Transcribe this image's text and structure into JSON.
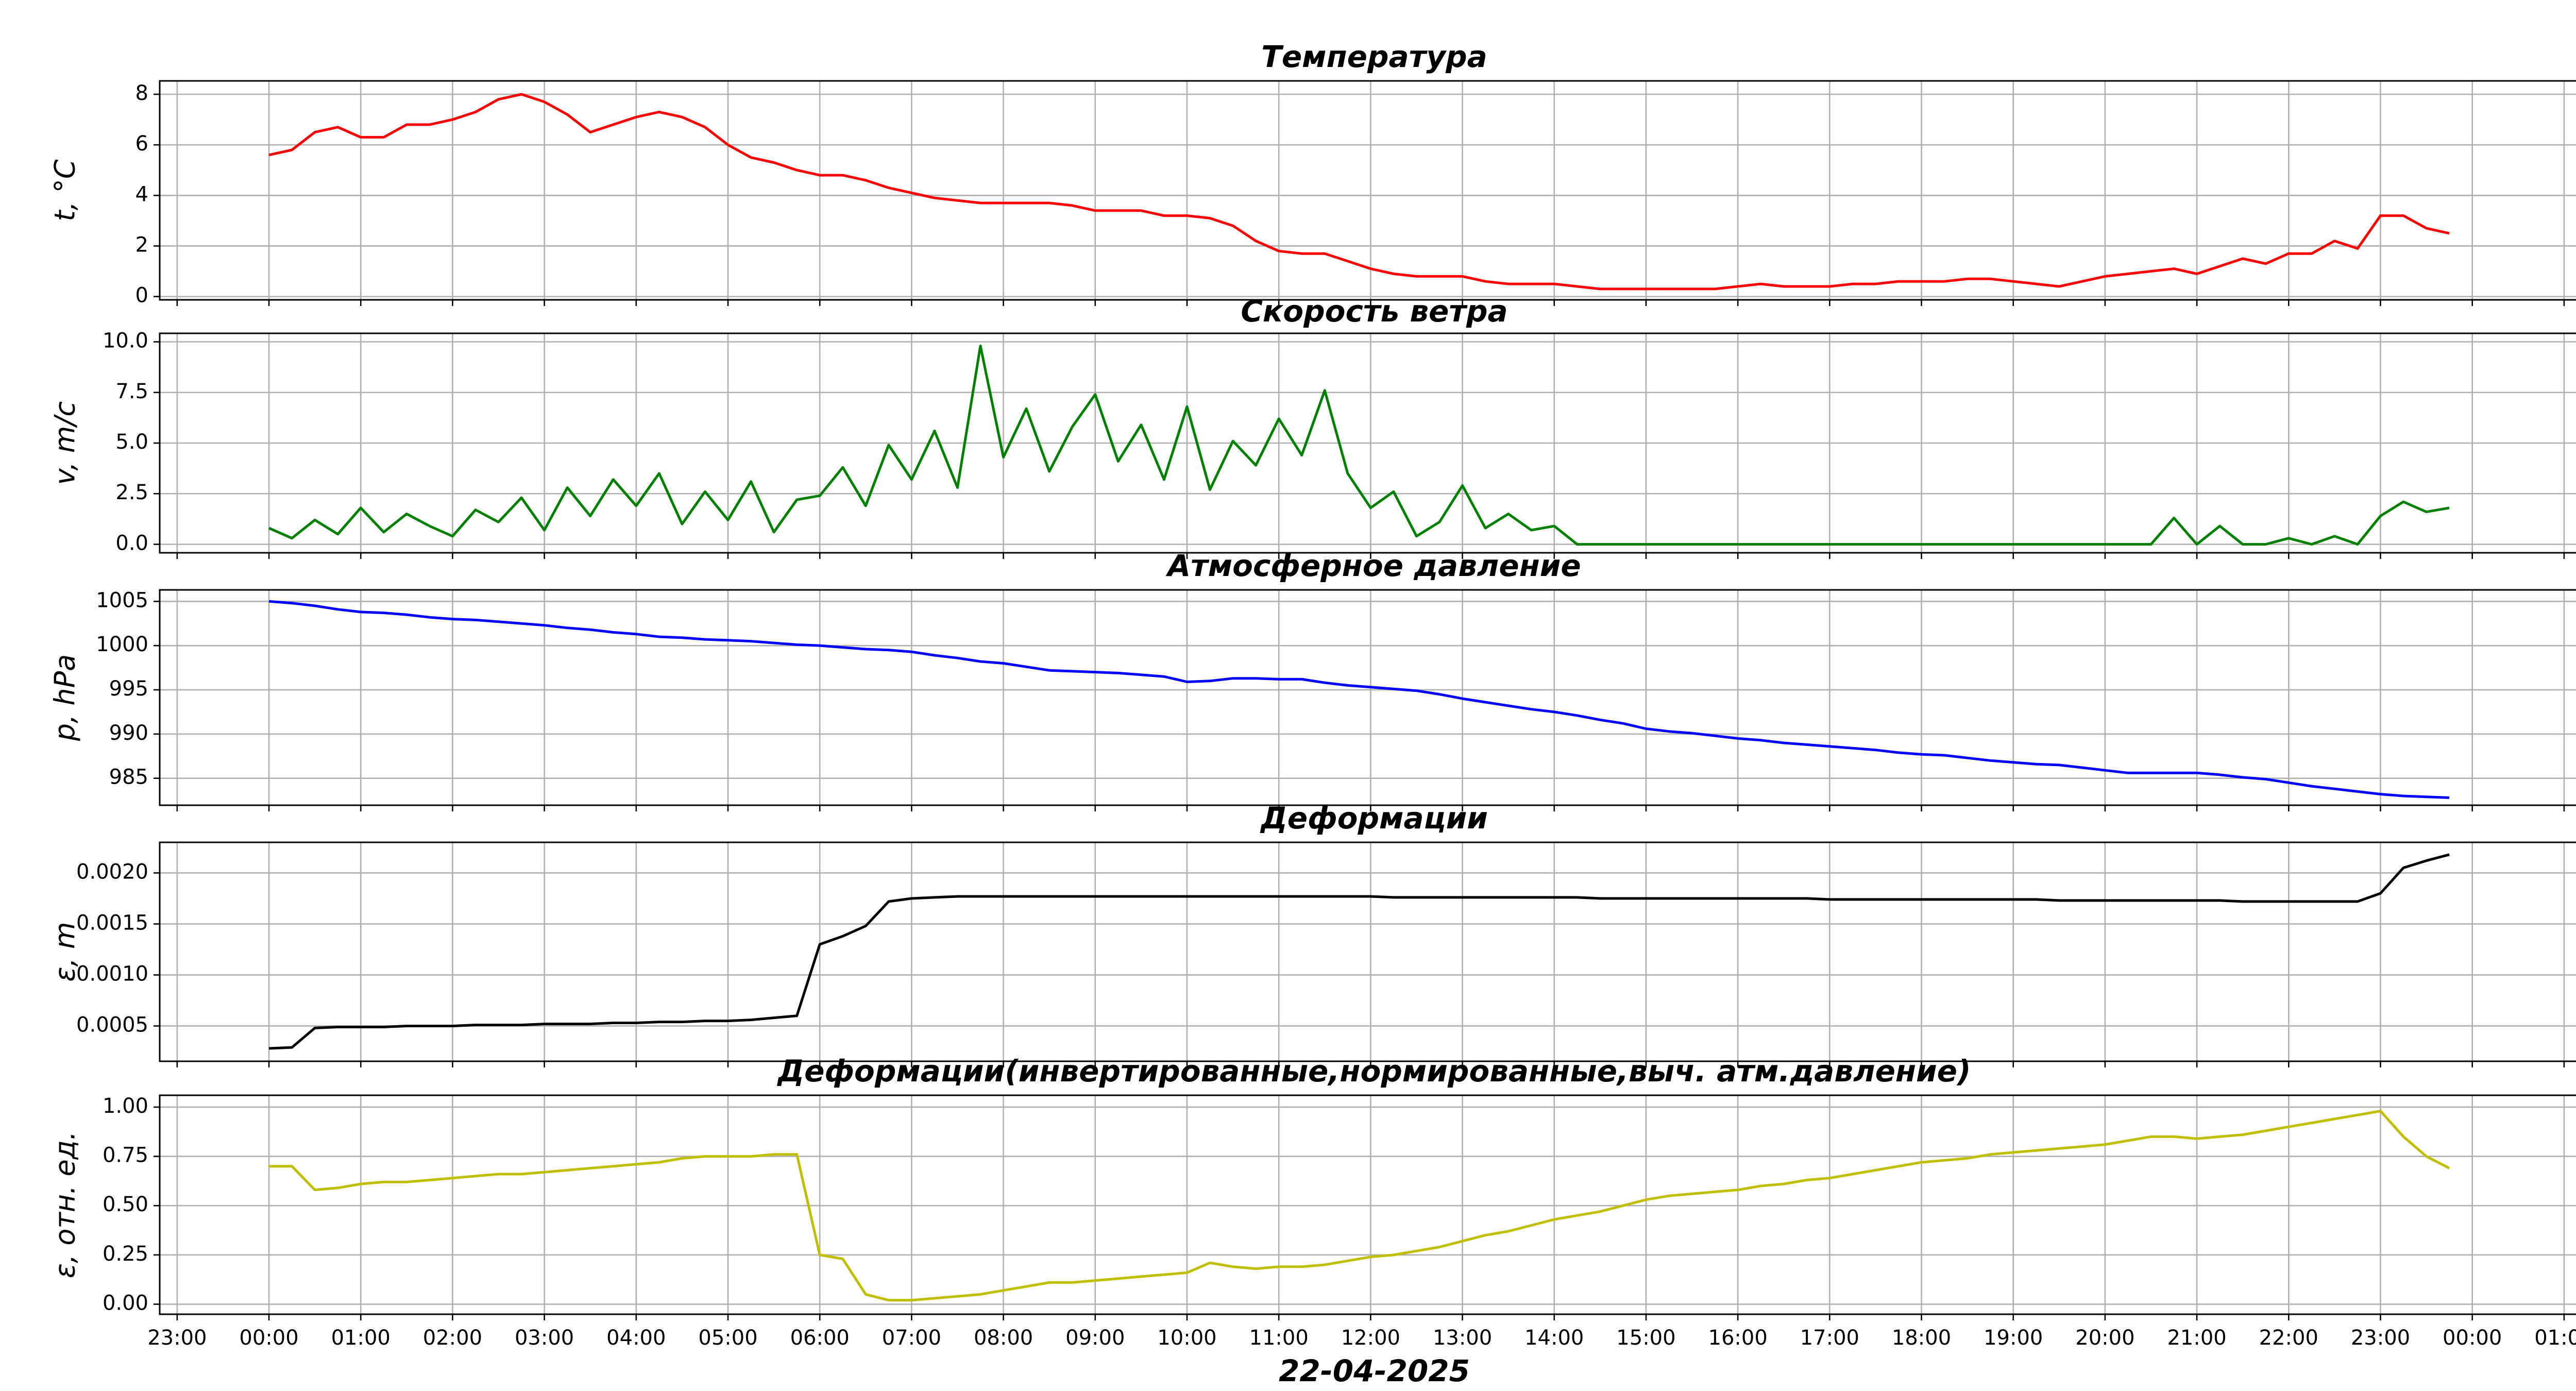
{
  "chart_data": [
    {
      "type": "line",
      "title": "Температура",
      "ylabel": "t, °C",
      "color": "#ff0000",
      "grid": true,
      "x": [
        0,
        0.25,
        0.5,
        0.75,
        1,
        1.25,
        1.5,
        1.75,
        2,
        2.25,
        2.5,
        2.75,
        3,
        3.25,
        3.5,
        3.75,
        4,
        4.25,
        4.5,
        4.75,
        5,
        5.25,
        5.5,
        5.75,
        6,
        6.25,
        6.5,
        6.75,
        7,
        7.25,
        7.5,
        7.75,
        8,
        8.25,
        8.5,
        8.75,
        9,
        9.25,
        9.5,
        9.75,
        10,
        10.25,
        10.5,
        10.75,
        11,
        11.25,
        11.5,
        11.75,
        12,
        12.25,
        12.5,
        12.75,
        13,
        13.25,
        13.5,
        13.75,
        14,
        14.25,
        14.5,
        14.75,
        15,
        15.25,
        15.5,
        15.75,
        16,
        16.25,
        16.5,
        16.75,
        17,
        17.25,
        17.5,
        17.75,
        18,
        18.25,
        18.5,
        18.75,
        19,
        19.25,
        19.5,
        19.75,
        20,
        20.25,
        20.5,
        20.75,
        21,
        21.25,
        21.5,
        21.75,
        22,
        22.25,
        22.5,
        22.75,
        23,
        23.25,
        23.5,
        23.75
      ],
      "values": [
        5.6,
        5.8,
        6.5,
        6.7,
        6.3,
        6.3,
        6.8,
        6.8,
        7.0,
        7.3,
        7.8,
        8.0,
        7.7,
        7.2,
        6.5,
        6.8,
        7.1,
        7.3,
        7.1,
        6.7,
        6.0,
        5.5,
        5.3,
        5.0,
        4.8,
        4.8,
        4.6,
        4.3,
        4.1,
        3.9,
        3.8,
        3.7,
        3.7,
        3.7,
        3.7,
        3.6,
        3.4,
        3.4,
        3.4,
        3.2,
        3.2,
        3.1,
        2.8,
        2.2,
        1.8,
        1.7,
        1.7,
        1.4,
        1.1,
        0.9,
        0.8,
        0.8,
        0.8,
        0.6,
        0.5,
        0.5,
        0.5,
        0.4,
        0.3,
        0.3,
        0.3,
        0.3,
        0.3,
        0.3,
        0.4,
        0.5,
        0.4,
        0.4,
        0.4,
        0.5,
        0.5,
        0.6,
        0.6,
        0.6,
        0.7,
        0.7,
        0.6,
        0.5,
        0.4,
        0.6,
        0.8,
        0.9,
        1.0,
        1.1,
        0.9,
        1.2,
        1.5,
        1.3,
        1.7,
        1.7,
        2.2,
        1.9,
        3.2,
        3.2,
        2.7,
        2.5
      ],
      "xlim": [
        -1.19,
        25.27
      ],
      "xticks": [
        -1,
        0,
        1,
        2,
        3,
        4,
        5,
        6,
        7,
        8,
        9,
        10,
        11,
        12,
        13,
        14,
        15,
        16,
        17,
        18,
        19,
        20,
        21,
        22,
        23,
        24,
        25
      ],
      "ylim": [
        -0.13,
        8.53
      ],
      "yticks": [
        0,
        2,
        4,
        6,
        8
      ]
    },
    {
      "type": "line",
      "title": "Скорость ветра",
      "ylabel": "v, m/c",
      "color": "#008000",
      "grid": true,
      "x": [
        0,
        0.25,
        0.5,
        0.75,
        1,
        1.25,
        1.5,
        1.75,
        2,
        2.25,
        2.5,
        2.75,
        3,
        3.25,
        3.5,
        3.75,
        4,
        4.25,
        4.5,
        4.75,
        5,
        5.25,
        5.5,
        5.75,
        6,
        6.25,
        6.5,
        6.75,
        7,
        7.25,
        7.5,
        7.75,
        8,
        8.25,
        8.5,
        8.75,
        9,
        9.25,
        9.5,
        9.75,
        10,
        10.25,
        10.5,
        10.75,
        11,
        11.25,
        11.5,
        11.75,
        12,
        12.25,
        12.5,
        12.75,
        13,
        13.25,
        13.5,
        13.75,
        14,
        14.25,
        14.5,
        14.75,
        15,
        15.25,
        15.5,
        15.75,
        16,
        16.25,
        16.5,
        16.75,
        17,
        17.25,
        17.5,
        17.75,
        18,
        18.25,
        18.5,
        18.75,
        19,
        19.25,
        19.5,
        19.75,
        20,
        20.25,
        20.5,
        20.75,
        21,
        21.25,
        21.5,
        21.75,
        22,
        22.25,
        22.5,
        22.75,
        23,
        23.25,
        23.5,
        23.75
      ],
      "values": [
        0.8,
        0.3,
        1.2,
        0.5,
        1.8,
        0.6,
        1.5,
        0.9,
        0.4,
        1.7,
        1.1,
        2.3,
        0.7,
        2.8,
        1.4,
        3.2,
        1.9,
        3.5,
        1.0,
        2.6,
        1.2,
        3.1,
        0.6,
        2.2,
        2.4,
        3.8,
        1.9,
        4.9,
        3.2,
        5.6,
        2.8,
        9.8,
        4.3,
        6.7,
        3.6,
        5.8,
        7.4,
        4.1,
        5.9,
        3.2,
        6.8,
        2.7,
        5.1,
        3.9,
        6.2,
        4.4,
        7.6,
        3.5,
        1.8,
        2.6,
        0.4,
        1.1,
        2.9,
        0.8,
        1.5,
        0.7,
        0.9,
        0,
        0,
        0,
        0,
        0,
        0,
        0,
        0,
        0,
        0,
        0,
        0,
        0,
        0,
        0,
        0,
        0,
        0,
        0,
        0,
        0,
        0,
        0,
        0,
        0,
        0,
        1.3,
        0,
        0.9,
        0,
        0,
        0.3,
        0,
        0.4,
        0,
        1.4,
        2.1,
        1.6,
        1.8
      ],
      "xlim": [
        -1.19,
        25.27
      ],
      "xticks": [
        -1,
        0,
        1,
        2,
        3,
        4,
        5,
        6,
        7,
        8,
        9,
        10,
        11,
        12,
        13,
        14,
        15,
        16,
        17,
        18,
        19,
        20,
        21,
        22,
        23,
        24,
        25
      ],
      "ylim": [
        -0.42,
        10.42
      ],
      "yticks": [
        {
          "value": 0,
          "label": "0.0"
        },
        2.5,
        {
          "value": 5,
          "label": "5.0"
        },
        7.5,
        {
          "value": 10,
          "label": "10.0"
        }
      ]
    },
    {
      "type": "line",
      "title": "Атмосферное давление",
      "ylabel": "p, hPa",
      "color": "#0000ff",
      "grid": true,
      "x": [
        0,
        0.25,
        0.5,
        0.75,
        1,
        1.25,
        1.5,
        1.75,
        2,
        2.25,
        2.5,
        2.75,
        3,
        3.25,
        3.5,
        3.75,
        4,
        4.25,
        4.5,
        4.75,
        5,
        5.25,
        5.5,
        5.75,
        6,
        6.25,
        6.5,
        6.75,
        7,
        7.25,
        7.5,
        7.75,
        8,
        8.25,
        8.5,
        8.75,
        9,
        9.25,
        9.5,
        9.75,
        10,
        10.25,
        10.5,
        10.75,
        11,
        11.25,
        11.5,
        11.75,
        12,
        12.25,
        12.5,
        12.75,
        13,
        13.25,
        13.5,
        13.75,
        14,
        14.25,
        14.5,
        14.75,
        15,
        15.25,
        15.5,
        15.75,
        16,
        16.25,
        16.5,
        16.75,
        17,
        17.25,
        17.5,
        17.75,
        18,
        18.25,
        18.5,
        18.75,
        19,
        19.25,
        19.5,
        19.75,
        20,
        20.25,
        20.5,
        20.75,
        21,
        21.25,
        21.5,
        21.75,
        22,
        22.25,
        22.5,
        22.75,
        23,
        23.25,
        23.5,
        23.75
      ],
      "values": [
        1005.0,
        1004.8,
        1004.5,
        1004.1,
        1003.8,
        1003.7,
        1003.5,
        1003.2,
        1003.0,
        1002.9,
        1002.7,
        1002.5,
        1002.3,
        1002.0,
        1001.8,
        1001.5,
        1001.3,
        1001.0,
        1000.9,
        1000.7,
        1000.6,
        1000.5,
        1000.3,
        1000.1,
        1000.0,
        999.8,
        999.6,
        999.5,
        999.3,
        998.9,
        998.6,
        998.2,
        998.0,
        997.6,
        997.2,
        997.1,
        997.0,
        996.9,
        996.7,
        996.5,
        995.9,
        996.0,
        996.3,
        996.3,
        996.2,
        996.2,
        995.8,
        995.5,
        995.3,
        995.1,
        994.9,
        994.5,
        994.0,
        993.6,
        993.2,
        992.8,
        992.5,
        992.1,
        991.6,
        991.2,
        990.6,
        990.3,
        990.1,
        989.8,
        989.5,
        989.3,
        989.0,
        988.8,
        988.6,
        988.4,
        988.2,
        987.9,
        987.7,
        987.6,
        987.3,
        987.0,
        986.8,
        986.6,
        986.5,
        986.2,
        985.9,
        985.6,
        985.6,
        985.6,
        985.6,
        985.4,
        985.1,
        984.9,
        984.5,
        984.1,
        983.8,
        983.5,
        983.2,
        983.0,
        982.9,
        982.8
      ],
      "xlim": [
        -1.19,
        25.27
      ],
      "xticks": [
        -1,
        0,
        1,
        2,
        3,
        4,
        5,
        6,
        7,
        8,
        9,
        10,
        11,
        12,
        13,
        14,
        15,
        16,
        17,
        18,
        19,
        20,
        21,
        22,
        23,
        24,
        25
      ],
      "ylim": [
        981.95,
        1006.3
      ],
      "yticks": [
        985,
        990,
        995,
        1000,
        1005
      ]
    },
    {
      "type": "line",
      "title": "Деформации",
      "ylabel": "ε, m",
      "color": "#000000",
      "grid": true,
      "x": [
        0,
        0.25,
        0.5,
        0.75,
        1,
        1.25,
        1.5,
        1.75,
        2,
        2.25,
        2.5,
        2.75,
        3,
        3.25,
        3.5,
        3.75,
        4,
        4.25,
        4.5,
        4.75,
        5,
        5.25,
        5.5,
        5.75,
        6,
        6.25,
        6.5,
        6.75,
        7,
        7.25,
        7.5,
        7.75,
        8,
        8.25,
        8.5,
        8.75,
        9,
        9.25,
        9.5,
        9.75,
        10,
        10.25,
        10.5,
        10.75,
        11,
        11.25,
        11.5,
        11.75,
        12,
        12.25,
        12.5,
        12.75,
        13,
        13.25,
        13.5,
        13.75,
        14,
        14.25,
        14.5,
        14.75,
        15,
        15.25,
        15.5,
        15.75,
        16,
        16.25,
        16.5,
        16.75,
        17,
        17.25,
        17.5,
        17.75,
        18,
        18.25,
        18.5,
        18.75,
        19,
        19.25,
        19.5,
        19.75,
        20,
        20.25,
        20.5,
        20.75,
        21,
        21.25,
        21.5,
        21.75,
        22,
        22.25,
        22.5,
        22.75,
        23,
        23.25,
        23.5,
        23.75
      ],
      "values": [
        0.00028,
        0.00029,
        0.00048,
        0.00049,
        0.00049,
        0.00049,
        0.0005,
        0.0005,
        0.0005,
        0.00051,
        0.00051,
        0.00051,
        0.00052,
        0.00052,
        0.00052,
        0.00053,
        0.00053,
        0.00054,
        0.00054,
        0.00055,
        0.00055,
        0.00056,
        0.00058,
        0.0006,
        0.0013,
        0.00138,
        0.00148,
        0.00172,
        0.00175,
        0.00176,
        0.00177,
        0.00177,
        0.00177,
        0.00177,
        0.00177,
        0.00177,
        0.00177,
        0.00177,
        0.00177,
        0.00177,
        0.00177,
        0.00177,
        0.00177,
        0.00177,
        0.00177,
        0.00177,
        0.00177,
        0.00177,
        0.00177,
        0.00176,
        0.00176,
        0.00176,
        0.00176,
        0.00176,
        0.00176,
        0.00176,
        0.00176,
        0.00176,
        0.00175,
        0.00175,
        0.00175,
        0.00175,
        0.00175,
        0.00175,
        0.00175,
        0.00175,
        0.00175,
        0.00175,
        0.00174,
        0.00174,
        0.00174,
        0.00174,
        0.00174,
        0.00174,
        0.00174,
        0.00174,
        0.00174,
        0.00174,
        0.00173,
        0.00173,
        0.00173,
        0.00173,
        0.00173,
        0.00173,
        0.00173,
        0.00173,
        0.00172,
        0.00172,
        0.00172,
        0.00172,
        0.00172,
        0.00172,
        0.0018,
        0.00205,
        0.00212,
        0.00218
      ],
      "xlim": [
        -1.19,
        25.27
      ],
      "xticks": [
        -1,
        0,
        1,
        2,
        3,
        4,
        5,
        6,
        7,
        8,
        9,
        10,
        11,
        12,
        13,
        14,
        15,
        16,
        17,
        18,
        19,
        20,
        21,
        22,
        23,
        24,
        25
      ],
      "ylim": [
        0.000154,
        0.0023
      ],
      "yticks": [
        {
          "value": 0.0005,
          "label": "0.0005"
        },
        {
          "value": 0.001,
          "label": "0.0010"
        },
        {
          "value": 0.0015,
          "label": "0.0015"
        },
        {
          "value": 0.002,
          "label": "0.0020"
        }
      ]
    },
    {
      "type": "line",
      "title": "Деформации(инвертированные,нормированные,выч. атм.давление)",
      "ylabel": "ε, отн. ед.",
      "xlabel": "22-04-2025",
      "color": "#bfbf00",
      "grid": true,
      "x": [
        0,
        0.25,
        0.5,
        0.75,
        1,
        1.25,
        1.5,
        1.75,
        2,
        2.25,
        2.5,
        2.75,
        3,
        3.25,
        3.5,
        3.75,
        4,
        4.25,
        4.5,
        4.75,
        5,
        5.25,
        5.5,
        5.75,
        6,
        6.25,
        6.5,
        6.75,
        7,
        7.25,
        7.5,
        7.75,
        8,
        8.25,
        8.5,
        8.75,
        9,
        9.25,
        9.5,
        9.75,
        10,
        10.25,
        10.5,
        10.75,
        11,
        11.25,
        11.5,
        11.75,
        12,
        12.25,
        12.5,
        12.75,
        13,
        13.25,
        13.5,
        13.75,
        14,
        14.25,
        14.5,
        14.75,
        15,
        15.25,
        15.5,
        15.75,
        16,
        16.25,
        16.5,
        16.75,
        17,
        17.25,
        17.5,
        17.75,
        18,
        18.25,
        18.5,
        18.75,
        19,
        19.25,
        19.5,
        19.75,
        20,
        20.25,
        20.5,
        20.75,
        21,
        21.25,
        21.5,
        21.75,
        22,
        22.25,
        22.5,
        22.75,
        23,
        23.25,
        23.5,
        23.75
      ],
      "values": [
        0.7,
        0.7,
        0.58,
        0.59,
        0.61,
        0.62,
        0.62,
        0.63,
        0.64,
        0.65,
        0.66,
        0.66,
        0.67,
        0.68,
        0.69,
        0.7,
        0.71,
        0.72,
        0.74,
        0.75,
        0.75,
        0.75,
        0.76,
        0.76,
        0.25,
        0.23,
        0.05,
        0.02,
        0.02,
        0.03,
        0.04,
        0.05,
        0.07,
        0.09,
        0.11,
        0.11,
        0.12,
        0.13,
        0.14,
        0.15,
        0.16,
        0.21,
        0.19,
        0.18,
        0.19,
        0.19,
        0.2,
        0.22,
        0.24,
        0.25,
        0.27,
        0.29,
        0.32,
        0.35,
        0.37,
        0.4,
        0.43,
        0.45,
        0.47,
        0.5,
        0.53,
        0.55,
        0.56,
        0.57,
        0.58,
        0.6,
        0.61,
        0.63,
        0.64,
        0.66,
        0.68,
        0.7,
        0.72,
        0.73,
        0.74,
        0.76,
        0.77,
        0.78,
        0.79,
        0.8,
        0.81,
        0.83,
        0.85,
        0.85,
        0.84,
        0.85,
        0.86,
        0.88,
        0.9,
        0.92,
        0.94,
        0.96,
        0.98,
        0.85,
        0.75,
        0.69
      ],
      "xlim": [
        -1.19,
        25.27
      ],
      "xticks": [
        {
          "value": -1,
          "label": "23:00"
        },
        {
          "value": 0,
          "label": "00:00"
        },
        {
          "value": 1,
          "label": "01:00"
        },
        {
          "value": 2,
          "label": "02:00"
        },
        {
          "value": 3,
          "label": "03:00"
        },
        {
          "value": 4,
          "label": "04:00"
        },
        {
          "value": 5,
          "label": "05:00"
        },
        {
          "value": 6,
          "label": "06:00"
        },
        {
          "value": 7,
          "label": "07:00"
        },
        {
          "value": 8,
          "label": "08:00"
        },
        {
          "value": 9,
          "label": "09:00"
        },
        {
          "value": 10,
          "label": "10:00"
        },
        {
          "value": 11,
          "label": "11:00"
        },
        {
          "value": 12,
          "label": "12:00"
        },
        {
          "value": 13,
          "label": "13:00"
        },
        {
          "value": 14,
          "label": "14:00"
        },
        {
          "value": 15,
          "label": "15:00"
        },
        {
          "value": 16,
          "label": "16:00"
        },
        {
          "value": 17,
          "label": "17:00"
        },
        {
          "value": 18,
          "label": "18:00"
        },
        {
          "value": 19,
          "label": "19:00"
        },
        {
          "value": 20,
          "label": "20:00"
        },
        {
          "value": 21,
          "label": "21:00"
        },
        {
          "value": 22,
          "label": "22:00"
        },
        {
          "value": 23,
          "label": "23:00"
        },
        {
          "value": 24,
          "label": "00:00"
        },
        {
          "value": 25,
          "label": "01:00"
        }
      ],
      "ylim": [
        -0.051,
        1.06
      ],
      "yticks": [
        {
          "value": 0,
          "label": "0.00"
        },
        0.25,
        {
          "value": 0.5,
          "label": "0.50"
        },
        0.75,
        {
          "value": 1,
          "label": "1.00"
        }
      ]
    }
  ]
}
